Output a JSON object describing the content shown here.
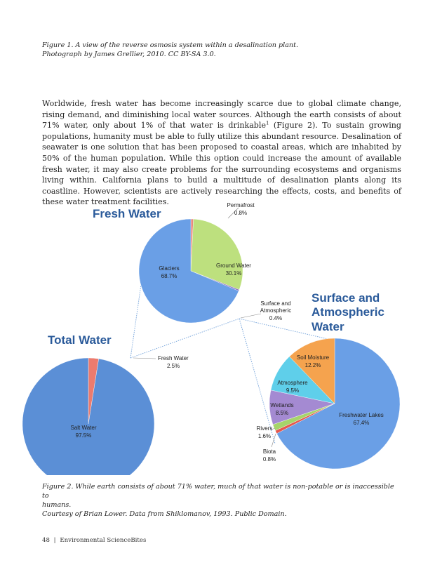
{
  "figure1_caption": {
    "line1": "Figure 1. A view of the reverse osmosis system within a desalination plant.",
    "line2": "Photograph by James Grellier, 2010. CC BY-SA 3.0."
  },
  "body_paragraph": {
    "part1": "Worldwide, fresh water has become increasingly scarce due to global climate change, rising demand, and diminishing local water sources. Although the earth consists of about 71% water, only about 1% of that water is drinkable",
    "footnote": "1",
    "part2": " (Figure 2). To sustain growing populations, humanity must be able to fully utilize this abundant resource. Desalination of seawater is one solution that has been proposed to coastal areas, which are inhabited by 50% of the human population. While this option could increase the amount of available fresh water, it may also create problems for the surrounding ecosystems and organisms living within. California plans to build a multitude of desalination plants along its coastline. However, scientists are actively researching the effects, costs, and benefits of these water treatment facilities."
  },
  "chart_data": [
    {
      "type": "pie",
      "title": "Total Water",
      "slices": [
        {
          "label": "Salt Water",
          "value": 97.5,
          "value_label": "97.5%",
          "color": "#5b8fd6"
        },
        {
          "label": "Fresh Water",
          "value": 2.5,
          "value_label": "2.5%",
          "color": "#ec7b6e"
        }
      ]
    },
    {
      "type": "pie",
      "title": "Fresh Water",
      "slices": [
        {
          "label": "Glaciers",
          "value": 68.7,
          "value_label": "68.7%",
          "color": "#6a9fe6"
        },
        {
          "label": "Ground Water",
          "value": 30.1,
          "value_label": "30.1%",
          "color": "#bde07e"
        },
        {
          "label": "Permafrost",
          "value": 0.8,
          "value_label": "0.8%",
          "color": "#e88a80"
        },
        {
          "label": "Surface and Atmospheric",
          "value": 0.4,
          "value_label": "0.4%",
          "color": "#8a6fbf"
        }
      ]
    },
    {
      "type": "pie",
      "title": "Surface and Atmospheric Water",
      "slices": [
        {
          "label": "Freshwater Lakes",
          "value": 67.4,
          "value_label": "67.4%",
          "color": "#6a9fe6"
        },
        {
          "label": "Soil Moisture",
          "value": 12.2,
          "value_label": "12.2%",
          "color": "#f5a34e"
        },
        {
          "label": "Atmosphere",
          "value": 9.5,
          "value_label": "9.5%",
          "color": "#5fcfea"
        },
        {
          "label": "Wetlands",
          "value": 8.5,
          "value_label": "8.5%",
          "color": "#a48ad2"
        },
        {
          "label": "Rivers",
          "value": 1.6,
          "value_label": "1.6%",
          "color": "#a6d46a"
        },
        {
          "label": "Biota",
          "value": 0.8,
          "value_label": "0.8%",
          "color": "#e5584e"
        }
      ]
    }
  ],
  "figure_titles": {
    "total": "Total Water",
    "fresh": "Fresh Water",
    "surface_line1": "Surface and",
    "surface_line2": "Atmospheric",
    "surface_line3": "Water"
  },
  "label_text": {
    "surface_and": "Surface and",
    "atmospheric": "Atmospheric"
  },
  "figure2_caption": {
    "line1": "Figure 2. While earth consists of about 71% water, much of that water is non-potable or is inaccessible to",
    "line2": "humans.",
    "line3": "Courtesy of Brian Lower. Data from Shiklomanov, 1993. Public Domain."
  },
  "footer": {
    "page_number": "48",
    "separator": "|",
    "book_title": "Environmental ScienceBites"
  }
}
